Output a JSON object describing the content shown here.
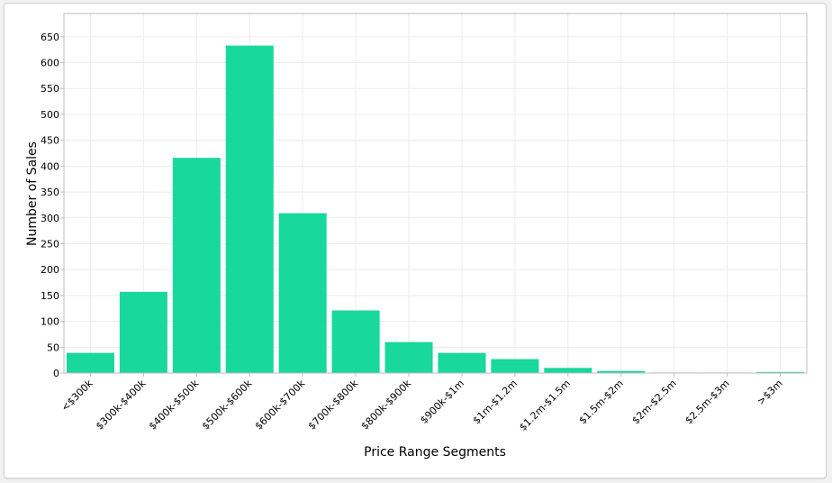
{
  "chart_data": {
    "type": "bar",
    "title": "",
    "xlabel": "Price Range Segments",
    "ylabel": "Number of Sales",
    "categories": [
      "<$300k",
      "$300k-$400k",
      "$400k-$500k",
      "$500k-$600k",
      "$600k-$700k",
      "$700k-$800k",
      "$800k-$900k",
      "$900k-$1m",
      "$1m-$1.2m",
      "$1.2m-$1.5m",
      "$1.5m-$2m",
      "$2m-$2.5m",
      "$2.5m-$3m",
      ">$3m"
    ],
    "values": [
      39,
      157,
      416,
      633,
      309,
      121,
      60,
      39,
      27,
      10,
      4,
      1,
      1,
      2
    ],
    "ylim": [
      0,
      695
    ],
    "yticks": [
      0,
      50,
      100,
      150,
      200,
      250,
      300,
      350,
      400,
      450,
      500,
      550,
      600,
      650
    ],
    "grid": true,
    "bar_color": "#18d89c",
    "grid_color": "#ececec",
    "axis_color": "#bdbdbd"
  }
}
